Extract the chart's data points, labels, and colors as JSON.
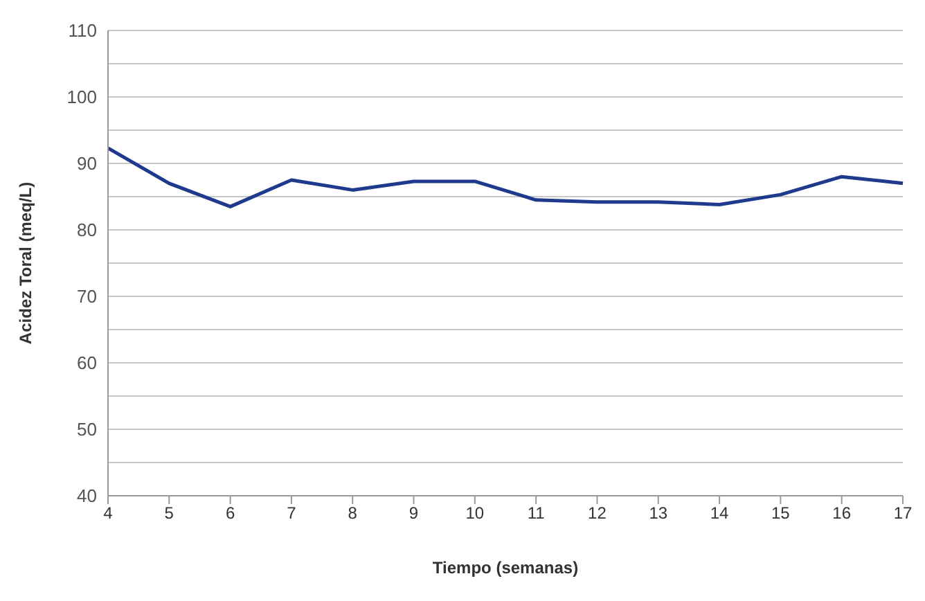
{
  "chart_data": {
    "type": "line",
    "xlabel": "Tiempo (semanas)",
    "ylabel": "Acidez Toral (meq/L)",
    "categories": [
      "4",
      "5",
      "6",
      "7",
      "8",
      "9",
      "10",
      "11",
      "12",
      "13",
      "14",
      "15",
      "16",
      "17"
    ],
    "series": [
      {
        "color": "#1f3a8c",
        "values": [
          92.3,
          87,
          83.5,
          87.5,
          86,
          87.3,
          87.3,
          84.5,
          84.2,
          84.2,
          83.8,
          85.3,
          88,
          87
        ]
      }
    ],
    "ylim": [
      40,
      110
    ],
    "yticks": [
      40,
      {
        "value": 45,
        "label": null
      },
      50,
      {
        "value": 55,
        "label": null
      },
      60,
      {
        "value": 65,
        "label": null
      },
      70,
      {
        "value": 75,
        "label": null
      },
      80,
      {
        "value": 85,
        "label": null
      },
      90,
      {
        "value": 95,
        "label": null
      },
      100,
      {
        "value": 105,
        "label": null
      },
      110
    ],
    "grid": "y",
    "marker": "none",
    "line_style": "solid",
    "legend": false
  }
}
